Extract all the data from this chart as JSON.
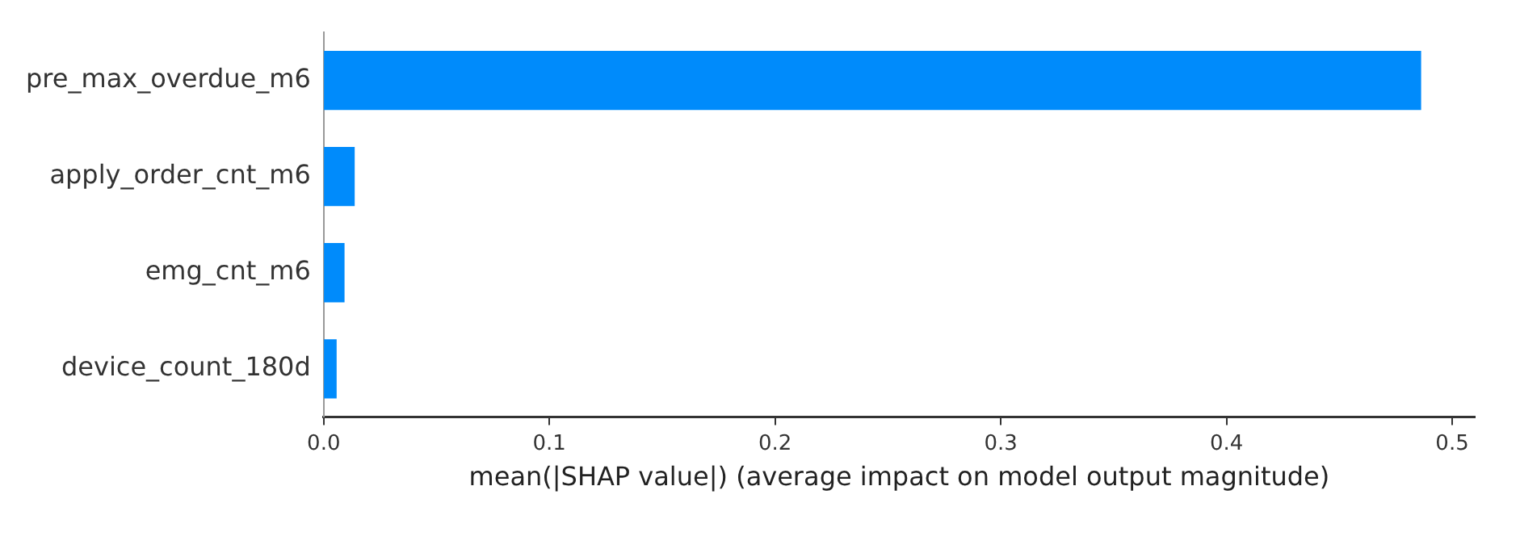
{
  "chart_data": {
    "type": "bar",
    "orientation": "horizontal",
    "xlabel": "mean(|SHAP value|) (average impact on model output magnitude)",
    "categories": [
      "pre_max_overdue_m6",
      "apply_order_cnt_m6",
      "emg_cnt_m6",
      "device_count_180d"
    ],
    "values": [
      0.486,
      0.0135,
      0.009,
      0.0055
    ],
    "color": "#008bfb",
    "xlim": [
      0,
      0.51
    ],
    "xticks": [
      {
        "value": 0,
        "label": "0.0"
      },
      0.1,
      0.2,
      0.3,
      0.4,
      0.5
    ],
    "grid": false,
    "legend": false
  }
}
